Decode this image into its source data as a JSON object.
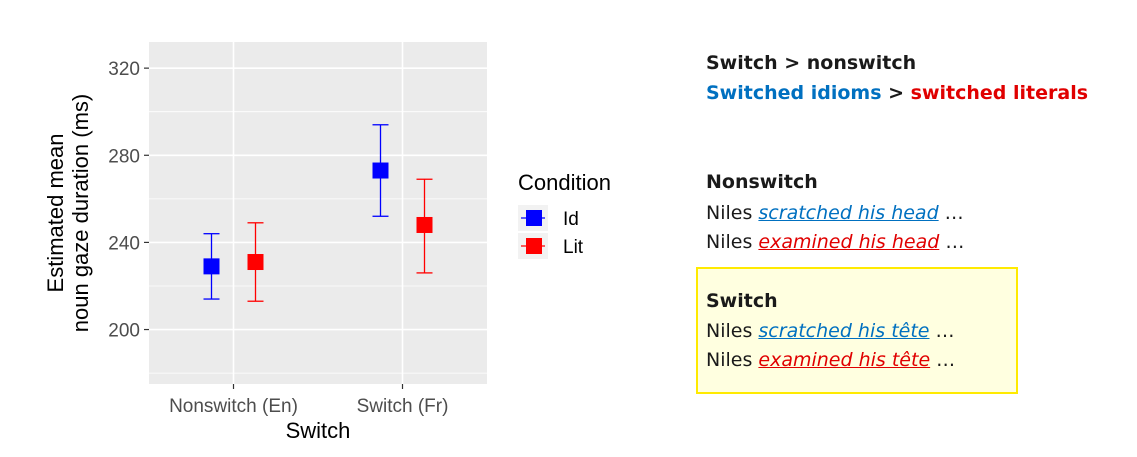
{
  "chart_data": {
    "type": "errorbar",
    "xlabel": "Switch",
    "ylabel_lines": [
      "Estimated mean",
      "noun gaze duration (ms)"
    ],
    "categories": [
      "Nonswitch (En)",
      "Switch (Fr)"
    ],
    "yticks": [
      "200",
      "240",
      "280",
      "320"
    ],
    "ylim": [
      175,
      332
    ],
    "grid": true,
    "legend": {
      "title": "Condition",
      "position": "right"
    },
    "series": [
      {
        "name": "Id",
        "color": "#0000ff",
        "values": [
          229,
          273
        ],
        "lower": [
          214,
          252
        ],
        "upper": [
          244,
          294
        ]
      },
      {
        "name": "Lit",
        "color": "#ff0000",
        "values": [
          231,
          248
        ],
        "lower": [
          213,
          226
        ],
        "upper": [
          249,
          269
        ]
      }
    ]
  },
  "notes": {
    "summary_line1": "Switch > nonswitch",
    "summary_line2_a": "Switched idioms",
    "summary_line2_b": " > ",
    "summary_line2_c": "switched literals",
    "nonswitch": {
      "heading": "Nonswitch",
      "ex1_subject": "Niles ",
      "ex1_phrase": "scratched his head",
      "ex1_tail": " …",
      "ex2_subject": "Niles ",
      "ex2_phrase": "examined his head",
      "ex2_tail": " …"
    },
    "switch": {
      "heading": "Switch",
      "ex1_subject": "Niles ",
      "ex1_phrase": "scratched his tête",
      "ex1_tail": " …",
      "ex2_subject": "Niles ",
      "ex2_phrase": "examined his tête",
      "ex2_tail": " …"
    }
  }
}
